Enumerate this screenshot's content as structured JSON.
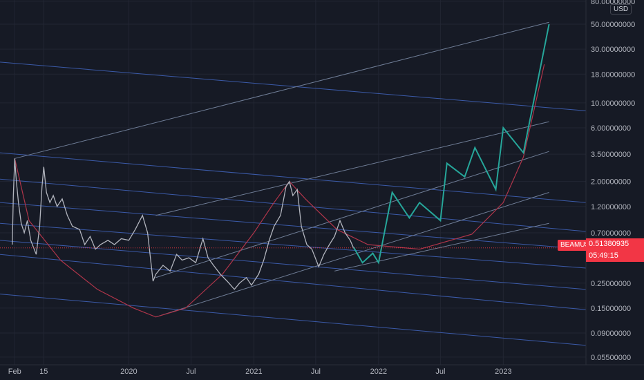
{
  "chart_data": {
    "type": "line",
    "symbol": "BEAMUSD",
    "currency": "USD",
    "y_scale": "log",
    "ylim": [
      0.047,
      82
    ],
    "y_ticks": [
      "80.00000000",
      "50.00000000",
      "30.00000000",
      "18.00000000",
      "10.00000000",
      "6.00000000",
      "3.50000000",
      "2.00000000",
      "1.20000000",
      "0.70000000",
      "0.51380935",
      "0.25000000",
      "0.15000000",
      "0.09000000",
      "0.05500000"
    ],
    "y_tick_values": [
      80,
      50,
      30,
      18,
      10,
      6,
      3.5,
      2,
      1.2,
      0.7,
      0.5138,
      0.25,
      0.15,
      0.09,
      0.055
    ],
    "x_ticks": [
      {
        "label": "Feb",
        "date": "2019-02-01"
      },
      {
        "label": "15",
        "date": "2019-04-27"
      },
      {
        "label": "2020",
        "date": "2020-01-01"
      },
      {
        "label": "Jul",
        "date": "2020-07-01"
      },
      {
        "label": "2021",
        "date": "2021-01-01"
      },
      {
        "label": "Jul",
        "date": "2021-07-01"
      },
      {
        "label": "2022",
        "date": "2022-01-01"
      },
      {
        "label": "Jul",
        "date": "2022-07-01"
      },
      {
        "label": "2023",
        "date": "2023-01-01"
      }
    ],
    "last_price": "0.51380935",
    "countdown": "05:49:15",
    "grid": true,
    "colors": {
      "background": "#161a25",
      "price": "#b2b5be",
      "projection": "#26a69a",
      "arc": "#b0354a",
      "channel": "#6f7d96",
      "descending_lines": "#3b5aa8",
      "price_tag": "#f23645"
    },
    "series": [
      {
        "name": "BEAMUSD",
        "points": [
          [
            "2019-01-25",
            0.55
          ],
          [
            "2019-01-28",
            1.5
          ],
          [
            "2019-02-01",
            3.2
          ],
          [
            "2019-02-06",
            2.0
          ],
          [
            "2019-02-12",
            1.3
          ],
          [
            "2019-02-20",
            0.85
          ],
          [
            "2019-03-01",
            0.7
          ],
          [
            "2019-03-10",
            0.9
          ],
          [
            "2019-03-20",
            0.6
          ],
          [
            "2019-04-05",
            0.45
          ],
          [
            "2019-04-15",
            0.8
          ],
          [
            "2019-04-22",
            1.8
          ],
          [
            "2019-04-27",
            2.7
          ],
          [
            "2019-05-05",
            1.6
          ],
          [
            "2019-05-15",
            1.3
          ],
          [
            "2019-05-25",
            1.5
          ],
          [
            "2019-06-05",
            1.2
          ],
          [
            "2019-06-20",
            1.4
          ],
          [
            "2019-07-05",
            1.0
          ],
          [
            "2019-07-20",
            0.8
          ],
          [
            "2019-08-10",
            0.75
          ],
          [
            "2019-08-25",
            0.55
          ],
          [
            "2019-09-10",
            0.65
          ],
          [
            "2019-09-25",
            0.5
          ],
          [
            "2019-10-10",
            0.55
          ],
          [
            "2019-11-01",
            0.6
          ],
          [
            "2019-11-20",
            0.55
          ],
          [
            "2019-12-10",
            0.62
          ],
          [
            "2020-01-01",
            0.6
          ],
          [
            "2020-01-20",
            0.75
          ],
          [
            "2020-02-10",
            1.0
          ],
          [
            "2020-02-25",
            0.7
          ],
          [
            "2020-03-12",
            0.26
          ],
          [
            "2020-03-20",
            0.3
          ],
          [
            "2020-04-10",
            0.36
          ],
          [
            "2020-05-01",
            0.32
          ],
          [
            "2020-05-20",
            0.45
          ],
          [
            "2020-06-05",
            0.4
          ],
          [
            "2020-06-25",
            0.42
          ],
          [
            "2020-07-15",
            0.38
          ],
          [
            "2020-08-05",
            0.62
          ],
          [
            "2020-08-20",
            0.42
          ],
          [
            "2020-09-05",
            0.36
          ],
          [
            "2020-09-25",
            0.3
          ],
          [
            "2020-10-15",
            0.26
          ],
          [
            "2020-11-05",
            0.22
          ],
          [
            "2020-11-20",
            0.25
          ],
          [
            "2020-12-10",
            0.28
          ],
          [
            "2020-12-25",
            0.24
          ],
          [
            "2021-01-15",
            0.3
          ],
          [
            "2021-01-30",
            0.4
          ],
          [
            "2021-02-15",
            0.6
          ],
          [
            "2021-03-01",
            0.8
          ],
          [
            "2021-03-20",
            1.0
          ],
          [
            "2021-04-05",
            1.8
          ],
          [
            "2021-04-15",
            2.0
          ],
          [
            "2021-04-25",
            1.5
          ],
          [
            "2021-05-08",
            1.7
          ],
          [
            "2021-05-20",
            0.8
          ],
          [
            "2021-06-05",
            0.55
          ],
          [
            "2021-06-20",
            0.5
          ],
          [
            "2021-07-10",
            0.35
          ],
          [
            "2021-07-25",
            0.45
          ],
          [
            "2021-08-10",
            0.55
          ],
          [
            "2021-08-25",
            0.65
          ],
          [
            "2021-09-10",
            0.9
          ],
          [
            "2021-09-25",
            0.7
          ],
          [
            "2021-10-10",
            0.6
          ],
          [
            "2021-10-20",
            0.51
          ]
        ]
      },
      {
        "name": "projection",
        "points": [
          [
            "2021-10-20",
            0.52
          ],
          [
            "2021-11-15",
            0.38
          ],
          [
            "2021-12-15",
            0.46
          ],
          [
            "2022-01-01",
            0.38
          ],
          [
            "2022-02-10",
            1.6
          ],
          [
            "2022-04-01",
            0.95
          ],
          [
            "2022-05-01",
            1.3
          ],
          [
            "2022-07-01",
            0.9
          ],
          [
            "2022-07-20",
            2.9
          ],
          [
            "2022-09-10",
            2.2
          ],
          [
            "2022-10-10",
            4.0
          ],
          [
            "2022-12-10",
            1.7
          ],
          [
            "2023-01-01",
            6.0
          ],
          [
            "2023-03-01",
            3.6
          ],
          [
            "2023-05-15",
            50
          ]
        ]
      },
      {
        "name": "arc",
        "points": [
          [
            "2019-02-01",
            3.2
          ],
          [
            "2019-03-15",
            0.9
          ],
          [
            "2019-06-15",
            0.4
          ],
          [
            "2019-10-01",
            0.22
          ],
          [
            "2020-01-15",
            0.15
          ],
          [
            "2020-03-20",
            0.125
          ],
          [
            "2020-06-15",
            0.15
          ],
          [
            "2020-10-01",
            0.3
          ],
          [
            "2021-01-01",
            0.7
          ],
          [
            "2021-03-01",
            1.3
          ],
          [
            "2021-04-15",
            2.0
          ],
          [
            "2021-06-01",
            1.4
          ],
          [
            "2021-09-01",
            0.75
          ],
          [
            "2021-12-01",
            0.55
          ],
          [
            "2022-05-01",
            0.5
          ],
          [
            "2022-10-01",
            0.68
          ],
          [
            "2023-01-01",
            1.3
          ],
          [
            "2023-03-01",
            3.3
          ],
          [
            "2023-05-01",
            22
          ]
        ]
      }
    ],
    "channel_lines": [
      {
        "from": [
          "2019-02-01",
          3.2
        ],
        "to": [
          "2023-05-15",
          52
        ]
      },
      {
        "from": [
          "2020-03-20",
          1.0
        ],
        "to": [
          "2023-05-15",
          6.8
        ]
      },
      {
        "from": [
          "2020-03-20",
          0.28
        ],
        "to": [
          "2023-05-15",
          3.7
        ]
      },
      {
        "from": [
          "2020-03-20",
          0.125
        ],
        "to": [
          "2023-05-15",
          1.6
        ]
      },
      {
        "from": [
          "2021-08-25",
          0.32
        ],
        "to": [
          "2023-05-15",
          0.85
        ]
      }
    ],
    "descending_lines": [
      {
        "from": [
          "2018-12-20",
          23
        ],
        "to": [
          "2023-08-31",
          8.5
        ]
      },
      {
        "from": [
          "2018-12-20",
          3.6
        ],
        "to": [
          "2023-08-31",
          1.3
        ]
      },
      {
        "from": [
          "2018-12-20",
          2.1
        ],
        "to": [
          "2023-08-31",
          0.72
        ]
      },
      {
        "from": [
          "2018-12-20",
          1.3
        ],
        "to": [
          "2023-08-31",
          0.5
        ]
      },
      {
        "from": [
          "2018-12-20",
          0.85
        ],
        "to": [
          "2023-08-31",
          0.34
        ]
      },
      {
        "from": [
          "2018-12-20",
          0.6
        ],
        "to": [
          "2023-08-31",
          0.22
        ]
      },
      {
        "from": [
          "2018-12-20",
          0.45
        ],
        "to": [
          "2023-08-31",
          0.145
        ]
      },
      {
        "from": [
          "2018-12-20",
          0.2
        ],
        "to": [
          "2023-08-31",
          0.07
        ]
      }
    ]
  }
}
